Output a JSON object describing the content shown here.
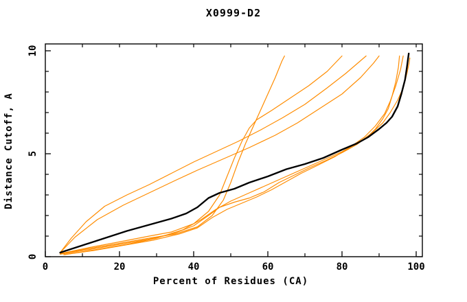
{
  "chart_data": {
    "type": "line",
    "title": "X0999-D2",
    "xlabel": "Percent of Residues (CA)",
    "ylabel": "Distance Cutoff, A",
    "xlim": [
      0,
      100
    ],
    "ylim": [
      0,
      10
    ],
    "x_major_ticks": [
      0,
      20,
      40,
      60,
      80,
      100
    ],
    "x_minor_ticks": [
      10,
      30,
      50,
      70,
      90
    ],
    "x_top_ticks": [
      10,
      20,
      30,
      40,
      50,
      60,
      70,
      80,
      90,
      100
    ],
    "y_major_ticks": [
      0,
      5,
      10
    ],
    "y_minor_ticks": [
      1,
      2,
      3,
      4,
      6,
      7,
      8,
      9
    ],
    "grid": false,
    "legend": "none",
    "colors": {
      "reference": "#000000",
      "model": "#ff8c00",
      "axis": "#000000"
    },
    "series": [
      {
        "name": "black-reference-curve",
        "color": "#000000",
        "width": 2.4,
        "points": [
          [
            4,
            0.2
          ],
          [
            10,
            0.55
          ],
          [
            16,
            0.9
          ],
          [
            22,
            1.25
          ],
          [
            28,
            1.55
          ],
          [
            34,
            1.85
          ],
          [
            38,
            2.1
          ],
          [
            41,
            2.4
          ],
          [
            44,
            2.85
          ],
          [
            47,
            3.1
          ],
          [
            51,
            3.3
          ],
          [
            55,
            3.6
          ],
          [
            60,
            3.9
          ],
          [
            65,
            4.25
          ],
          [
            70,
            4.5
          ],
          [
            75,
            4.8
          ],
          [
            80,
            5.2
          ],
          [
            84,
            5.5
          ],
          [
            87,
            5.8
          ],
          [
            90,
            6.2
          ],
          [
            92,
            6.5
          ],
          [
            93.5,
            6.8
          ],
          [
            95,
            7.3
          ],
          [
            96,
            7.9
          ],
          [
            97,
            8.6
          ],
          [
            97.5,
            9.2
          ],
          [
            97.9,
            9.75
          ],
          [
            98,
            9.87
          ]
        ]
      },
      {
        "name": "orange-model-curve-1",
        "color": "#ff8c00",
        "width": 1.2,
        "points": [
          [
            4,
            0.15
          ],
          [
            12,
            0.4
          ],
          [
            20,
            0.65
          ],
          [
            28,
            0.9
          ],
          [
            35,
            1.1
          ],
          [
            41,
            1.45
          ],
          [
            45,
            2.0
          ],
          [
            48,
            2.75
          ],
          [
            50,
            3.6
          ],
          [
            52,
            4.6
          ],
          [
            54,
            5.5
          ],
          [
            56,
            6.3
          ],
          [
            58,
            7.1
          ],
          [
            60,
            7.9
          ],
          [
            62,
            8.7
          ],
          [
            63.8,
            9.5
          ],
          [
            64.5,
            9.75
          ]
        ]
      },
      {
        "name": "orange-model-curve-2",
        "color": "#ff8c00",
        "width": 1.2,
        "points": [
          [
            4,
            0.15
          ],
          [
            12,
            0.45
          ],
          [
            20,
            0.72
          ],
          [
            28,
            1.0
          ],
          [
            34,
            1.2
          ],
          [
            40,
            1.6
          ],
          [
            44,
            2.2
          ],
          [
            47,
            3.0
          ],
          [
            49,
            3.9
          ],
          [
            51,
            4.8
          ],
          [
            53,
            5.6
          ],
          [
            55,
            6.25
          ],
          [
            57,
            6.65
          ],
          [
            61,
            7.1
          ],
          [
            66,
            7.7
          ],
          [
            71,
            8.3
          ],
          [
            76,
            9.0
          ],
          [
            80,
            9.75
          ]
        ]
      },
      {
        "name": "orange-model-curve-3",
        "color": "#ff8c00",
        "width": 1.2,
        "points": [
          [
            4,
            0.2
          ],
          [
            7,
            0.9
          ],
          [
            11,
            1.7
          ],
          [
            16,
            2.45
          ],
          [
            22,
            3.0
          ],
          [
            28,
            3.5
          ],
          [
            34,
            4.05
          ],
          [
            40,
            4.6
          ],
          [
            46,
            5.1
          ],
          [
            52,
            5.6
          ],
          [
            58,
            6.15
          ],
          [
            64,
            6.75
          ],
          [
            70,
            7.4
          ],
          [
            76,
            8.2
          ],
          [
            81,
            8.9
          ],
          [
            86.5,
            9.75
          ]
        ]
      },
      {
        "name": "orange-model-curve-4",
        "color": "#ff8c00",
        "width": 1.2,
        "points": [
          [
            4,
            0.2
          ],
          [
            8,
            0.95
          ],
          [
            14,
            1.8
          ],
          [
            21,
            2.5
          ],
          [
            28,
            3.1
          ],
          [
            35,
            3.7
          ],
          [
            41,
            4.2
          ],
          [
            48,
            4.75
          ],
          [
            55,
            5.3
          ],
          [
            62,
            5.9
          ],
          [
            68,
            6.5
          ],
          [
            74,
            7.2
          ],
          [
            80,
            7.9
          ],
          [
            85,
            8.7
          ],
          [
            88.5,
            9.4
          ],
          [
            90,
            9.75
          ]
        ]
      },
      {
        "name": "orange-model-curve-5",
        "color": "#ff8c00",
        "width": 1.2,
        "points": [
          [
            4,
            0.12
          ],
          [
            12,
            0.35
          ],
          [
            20,
            0.6
          ],
          [
            28,
            0.85
          ],
          [
            35,
            1.15
          ],
          [
            40,
            1.5
          ],
          [
            44,
            2.0
          ],
          [
            47,
            2.4
          ],
          [
            51,
            2.65
          ],
          [
            55,
            2.85
          ],
          [
            59,
            3.15
          ],
          [
            63,
            3.6
          ],
          [
            67,
            3.95
          ],
          [
            71,
            4.3
          ],
          [
            76,
            4.7
          ],
          [
            80,
            5.05
          ],
          [
            84,
            5.45
          ],
          [
            87,
            5.85
          ],
          [
            89,
            6.2
          ],
          [
            91,
            6.7
          ],
          [
            92.5,
            7.2
          ],
          [
            93.5,
            7.8
          ],
          [
            94.5,
            8.5
          ],
          [
            95.2,
            9.2
          ],
          [
            95.5,
            9.75
          ]
        ]
      },
      {
        "name": "orange-model-curve-6",
        "color": "#ff8c00",
        "width": 1.2,
        "points": [
          [
            5,
            0.1
          ],
          [
            13,
            0.3
          ],
          [
            21,
            0.55
          ],
          [
            29,
            0.8
          ],
          [
            36,
            1.1
          ],
          [
            41,
            1.4
          ],
          [
            45,
            1.9
          ],
          [
            49,
            2.3
          ],
          [
            53,
            2.6
          ],
          [
            57,
            2.9
          ],
          [
            61,
            3.25
          ],
          [
            65,
            3.65
          ],
          [
            69,
            4.05
          ],
          [
            73,
            4.4
          ],
          [
            78,
            4.85
          ],
          [
            82,
            5.3
          ],
          [
            86,
            5.8
          ],
          [
            89,
            6.35
          ],
          [
            91.5,
            6.95
          ],
          [
            93,
            7.55
          ],
          [
            94.5,
            8.3
          ],
          [
            95.8,
            9.1
          ],
          [
            96.5,
            9.75
          ]
        ]
      },
      {
        "name": "orange-model-curve-7",
        "color": "#ff8c00",
        "width": 1.2,
        "points": [
          [
            5,
            0.1
          ],
          [
            14,
            0.35
          ],
          [
            22,
            0.6
          ],
          [
            30,
            0.9
          ],
          [
            37,
            1.3
          ],
          [
            42,
            1.8
          ],
          [
            46,
            2.3
          ],
          [
            50,
            2.7
          ],
          [
            55,
            3.1
          ],
          [
            60,
            3.5
          ],
          [
            65,
            3.9
          ],
          [
            70,
            4.3
          ],
          [
            75,
            4.7
          ],
          [
            80,
            5.1
          ],
          [
            85,
            5.6
          ],
          [
            88,
            6.0
          ],
          [
            91,
            6.5
          ],
          [
            93,
            7.0
          ],
          [
            95,
            7.6
          ],
          [
            96.5,
            8.2
          ],
          [
            97.5,
            8.9
          ],
          [
            98.1,
            9.4
          ],
          [
            98.3,
            9.65
          ]
        ]
      }
    ]
  }
}
